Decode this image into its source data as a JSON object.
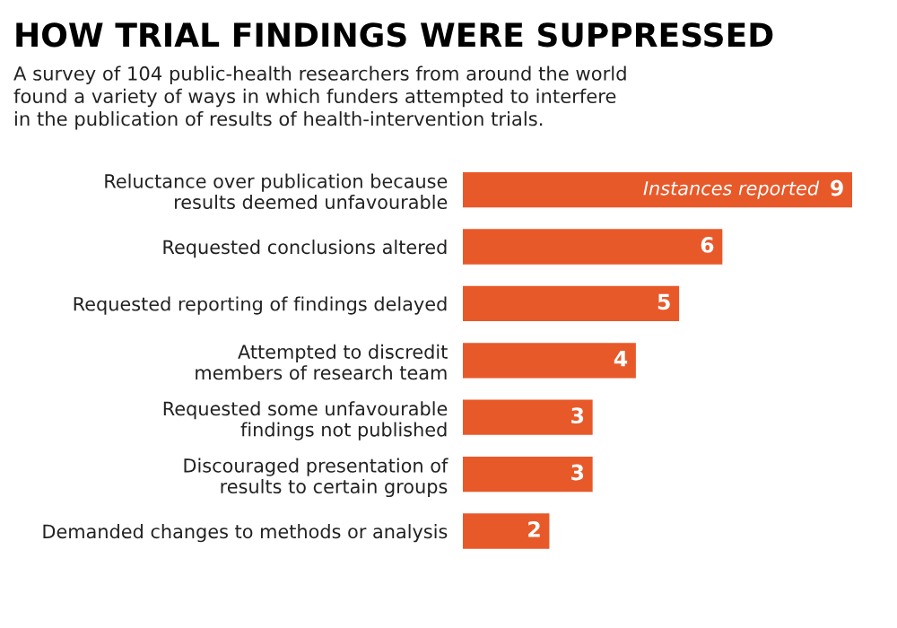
{
  "chart_data": {
    "type": "bar",
    "orientation": "horizontal",
    "title": "HOW TRIAL FINDINGS WERE SUPPRESSED",
    "subtitle": "A survey of 104 public-health researchers from around the world\nfound a variety of ways in which funders attempted to interfere\nin the publication of results of health-intervention trials.",
    "categories": [
      "Reluctance over publication because\nresults deemed unfavourable",
      "Requested conclusions altered",
      "Requested reporting of findings delayed",
      "Attempted to discredit\nmembers of research team",
      "Requested some unfavourable\nfindings not published",
      "Discouraged presentation of\nresults to certain groups",
      "Demanded changes to methods or analysis"
    ],
    "values": [
      9,
      6,
      5,
      4,
      3,
      3,
      2
    ],
    "color": "#e8592a",
    "data_labels": true,
    "annotations": [
      {
        "text": "Instances reported",
        "x": 9,
        "y": "Reluctance over publication because\nresults deemed unfavourable"
      }
    ]
  }
}
